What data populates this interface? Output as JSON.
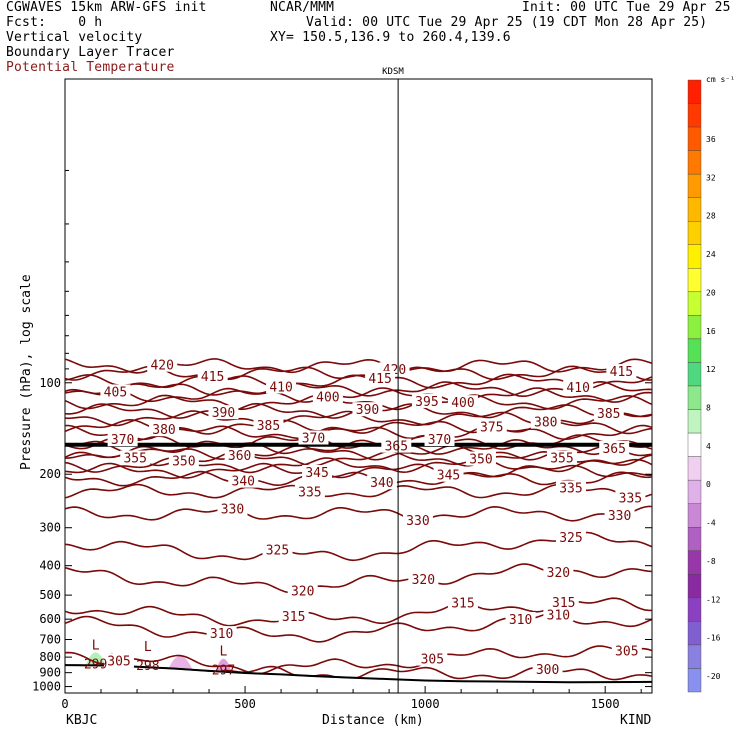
{
  "header": {
    "title_left": "CGWAVES 15km ARW-GFS init",
    "title_center": "NCAR/MMM",
    "init": "Init: 00 UTC Tue 29 Apr 25",
    "fcst": "Fcst:    0 h",
    "valid": "Valid: 00 UTC Tue 29 Apr 25 (19 CDT Mon 28 Apr 25)",
    "field1": "Vertical velocity",
    "field2": "Boundary Layer Tracer",
    "field3": "Potential Temperature",
    "xy": "XY= 150.5,136.9 to 260.4,139.6"
  },
  "colors": {
    "theta": "#7a0a0a",
    "field3_label": "#8b1a1a",
    "axis": "#000000"
  },
  "chart_data": {
    "type": "cross-section",
    "xlabel": "Distance (km)",
    "ylabel": "Pressure (hPa), log scale",
    "xlim": [
      0,
      1630
    ],
    "ylim_hpa": [
      1050,
      10
    ],
    "x_ticks": [
      0,
      500,
      1000,
      1500
    ],
    "x_tick_labels": [
      "0",
      "500",
      "1000",
      "1500"
    ],
    "y_ticks": [
      100,
      200,
      300,
      400,
      500,
      600,
      700,
      800,
      900,
      1000
    ],
    "y_tick_labels": [
      "100",
      "200",
      "300",
      "400",
      "500",
      "600",
      "700",
      "800",
      "900",
      "1000"
    ],
    "station_left": "KBJC",
    "station_right": "KIND",
    "station_mid": {
      "name": "KDSM",
      "km": 925
    },
    "colorbar": {
      "unit": "cm s⁻¹",
      "levels": [
        36,
        32,
        28,
        24,
        20,
        16,
        12,
        8,
        4,
        0,
        -4,
        -8,
        -12,
        -16,
        -20
      ],
      "colors": [
        "#ff2000",
        "#ff3a00",
        "#ff5a00",
        "#ff7800",
        "#ff9a00",
        "#ffb800",
        "#ffd000",
        "#fff000",
        "#ffff30",
        "#c8ff30",
        "#8cf040",
        "#56e056",
        "#50d880",
        "#8de88c",
        "#c0f4c0",
        "#ffffff",
        "#f0d0f0",
        "#e0b0e8",
        "#c888d4",
        "#b060c0",
        "#9838a8",
        "#8a2aa0",
        "#8a40c0",
        "#8060d0",
        "#8a80e0",
        "#8890f0"
      ]
    },
    "contours": [
      {
        "value": 420,
        "labels_km": [
          270,
          915
        ]
      },
      {
        "value": 415,
        "labels_km": [
          410,
          875,
          1545
        ]
      },
      {
        "value": 410,
        "labels_km": [
          600,
          1425
        ]
      },
      {
        "value": 405,
        "labels_km": [
          140
        ]
      },
      {
        "value": 400,
        "labels_km": [
          730,
          1105
        ]
      },
      {
        "value": 395,
        "labels_km": [
          1005
        ]
      },
      {
        "value": 390,
        "labels_km": [
          440,
          840
        ]
      },
      {
        "value": 385,
        "labels_km": [
          565,
          1510
        ]
      },
      {
        "value": 380,
        "labels_km": [
          275,
          1335
        ]
      },
      {
        "value": 375,
        "labels_km": [
          1185
        ]
      },
      {
        "value": 370,
        "labels_km": [
          160,
          690,
          1040
        ]
      },
      {
        "value": 365,
        "labels_km": [
          920,
          1525
        ]
      },
      {
        "value": 360,
        "labels_km": [
          485
        ]
      },
      {
        "value": 355,
        "labels_km": [
          195,
          1380
        ]
      },
      {
        "value": 350,
        "labels_km": [
          330,
          1155
        ]
      },
      {
        "value": 345,
        "labels_km": [
          700,
          1065
        ]
      },
      {
        "value": 340,
        "labels_km": [
          495,
          880
        ]
      },
      {
        "value": 335,
        "labels_km": [
          680,
          1405,
          1570
        ]
      },
      {
        "value": 330,
        "labels_km": [
          465,
          980,
          1540
        ]
      },
      {
        "value": 325,
        "labels_km": [
          590,
          1405
        ]
      },
      {
        "value": 320,
        "labels_km": [
          660,
          995,
          1370
        ]
      },
      {
        "value": 315,
        "labels_km": [
          635,
          1105,
          1385
        ]
      },
      {
        "value": 310,
        "labels_km": [
          435,
          1265,
          1370
        ]
      },
      {
        "value": 305,
        "labels_km": [
          150,
          1020,
          1560
        ]
      },
      {
        "value": 300,
        "labels_km": [
          1340
        ]
      }
    ],
    "low_labels": [
      {
        "text": "L",
        "value": "299",
        "km": 85
      },
      {
        "text": "L",
        "value": "298",
        "km": 230
      },
      {
        "text": "L",
        "value": "297",
        "km": 440
      }
    ],
    "terrain_hpa": [
      [
        0,
        850
      ],
      [
        100,
        852
      ],
      [
        200,
        860
      ],
      [
        300,
        872
      ],
      [
        400,
        888
      ],
      [
        500,
        902
      ],
      [
        600,
        912
      ],
      [
        700,
        925
      ],
      [
        800,
        935
      ],
      [
        900,
        945
      ],
      [
        1000,
        955
      ],
      [
        1100,
        960
      ],
      [
        1200,
        962
      ],
      [
        1300,
        965
      ],
      [
        1400,
        968
      ],
      [
        1500,
        967
      ],
      [
        1630,
        965
      ]
    ]
  }
}
